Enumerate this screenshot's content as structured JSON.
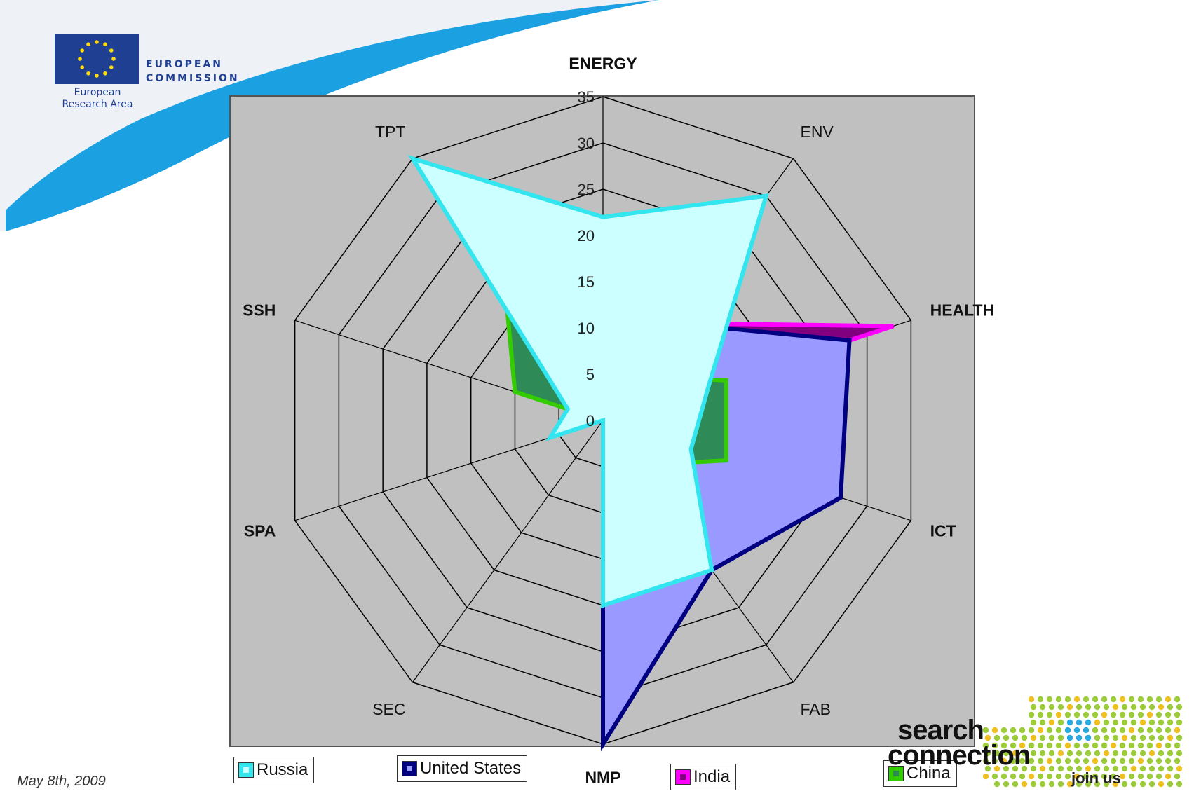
{
  "header": {
    "org_line1": "EUROPEAN",
    "org_line2": "COMMISSION",
    "era_line1": "European",
    "era_line2": "Research Area"
  },
  "footer": {
    "date": "May 8th, 2009",
    "logo_text1": "search",
    "logo_text2": "connection",
    "logo_join": "join us"
  },
  "colors": {
    "plot_bg": "#c0c0c0",
    "grid": "#000000",
    "swoosh": "#1ba1e2",
    "russia": "#33e5ee",
    "united_states": "#000080",
    "india": "#ff00ff",
    "china": "#33cc00"
  },
  "chart_data": {
    "type": "radar",
    "title": "",
    "axes": [
      "ENERGY",
      "ENV",
      "HEALTH",
      "ICT",
      "FAB",
      "NMP",
      "SEC",
      "SPA",
      "SSH",
      "TPT"
    ],
    "r_ticks": [
      "0",
      "5",
      "10",
      "15",
      "20",
      "25",
      "30",
      "35"
    ],
    "rlim": [
      0,
      35
    ],
    "grid": true,
    "legend_position": "bottom",
    "series": [
      {
        "name": "India",
        "color": "#ff00ff",
        "fill": "#800080",
        "values": [
          0,
          13,
          33,
          0,
          0,
          0,
          0,
          0,
          0,
          0
        ]
      },
      {
        "name": "United States",
        "color": "#000080",
        "fill": "#9999ff",
        "values": [
          0,
          13,
          28,
          27,
          20,
          35,
          0,
          0,
          0,
          0
        ]
      },
      {
        "name": "China",
        "color": "#33cc00",
        "fill": "#2e8b57",
        "values": [
          0,
          6,
          14,
          14,
          6,
          0,
          0,
          0,
          10,
          18
        ]
      },
      {
        "name": "Russia",
        "color": "#33e5ee",
        "fill": "#ccffff",
        "values": [
          22,
          30,
          12,
          10,
          20,
          20,
          0,
          6,
          4,
          35
        ]
      }
    ],
    "legend": [
      "Russia",
      "United States",
      "India",
      "China"
    ]
  }
}
